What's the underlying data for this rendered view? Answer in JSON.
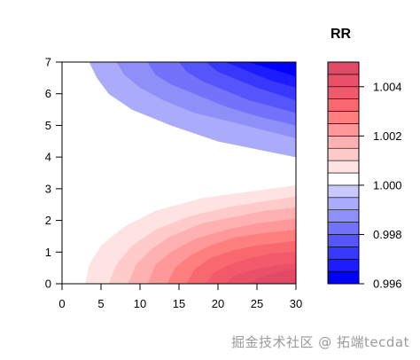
{
  "chart_data": {
    "type": "heatmap",
    "subtype": "filled-contour",
    "title": "",
    "xlabel": "",
    "ylabel": "",
    "xlim": [
      0,
      30
    ],
    "ylim": [
      0,
      7
    ],
    "x_ticks": [
      0,
      5,
      10,
      15,
      20,
      25,
      30
    ],
    "y_ticks": [
      0,
      1,
      2,
      3,
      4,
      5,
      6,
      7
    ],
    "legend": {
      "title": "RR",
      "placement": "right",
      "range": [
        0.996,
        1.005
      ],
      "tick_values": [
        0.996,
        0.998,
        1.0,
        1.002,
        1.004
      ],
      "tick_labels": [
        "0.996",
        "0.998",
        "1.000",
        "1.002",
        "1.004"
      ],
      "levels": [
        0.996,
        0.9965,
        0.997,
        0.9975,
        0.998,
        0.9985,
        0.999,
        0.9995,
        1.0,
        1.0005,
        1.001,
        1.0015,
        1.002,
        1.0025,
        1.003,
        1.0035,
        1.004,
        1.0045,
        1.005
      ],
      "colors": [
        "#0000ff",
        "#1c1cfe",
        "#3838fd",
        "#5555fb",
        "#7272fa",
        "#8f8ffa",
        "#ababfb",
        "#c8c8fc",
        "#ffffff",
        "#ffe3e3",
        "#ffcaca",
        "#ffb1b1",
        "#ff9898",
        "#ff7f7f",
        "#f9686f",
        "#f25a6b",
        "#ea5068",
        "#e04a66"
      ]
    },
    "contours_upper": [
      {
        "level": 0.9995,
        "points": [
          [
            3.5,
            7
          ],
          [
            4.5,
            6.5
          ],
          [
            6,
            6
          ],
          [
            9,
            5.5
          ],
          [
            14,
            5
          ],
          [
            20,
            4.5
          ],
          [
            30,
            4.0
          ]
        ]
      },
      {
        "level": 0.999,
        "points": [
          [
            7,
            7
          ],
          [
            8,
            6.6
          ],
          [
            10,
            6.2
          ],
          [
            13,
            5.8
          ],
          [
            17,
            5.4
          ],
          [
            22,
            5.1
          ],
          [
            30,
            4.6
          ]
        ]
      },
      {
        "level": 0.9985,
        "points": [
          [
            11,
            7
          ],
          [
            12,
            6.6
          ],
          [
            14,
            6.3
          ],
          [
            17,
            6.0
          ],
          [
            21,
            5.6
          ],
          [
            25,
            5.3
          ],
          [
            30,
            5.0
          ]
        ]
      },
      {
        "level": 0.998,
        "points": [
          [
            15,
            7
          ],
          [
            16,
            6.7
          ],
          [
            18,
            6.4
          ],
          [
            21,
            6.1
          ],
          [
            24,
            5.8
          ],
          [
            30,
            5.4
          ]
        ]
      },
      {
        "level": 0.9975,
        "points": [
          [
            18.5,
            7
          ],
          [
            20,
            6.7
          ],
          [
            22,
            6.5
          ],
          [
            25,
            6.2
          ],
          [
            30,
            5.8
          ]
        ]
      },
      {
        "level": 0.997,
        "points": [
          [
            21,
            7
          ],
          [
            23,
            6.8
          ],
          [
            25,
            6.6
          ],
          [
            27,
            6.4
          ],
          [
            30,
            6.2
          ]
        ]
      },
      {
        "level": 0.9965,
        "points": [
          [
            24,
            7
          ],
          [
            26,
            6.85
          ],
          [
            28,
            6.7
          ],
          [
            30,
            6.55
          ]
        ]
      },
      {
        "level": 0.996,
        "points": [
          [
            27,
            7
          ],
          [
            28.5,
            6.9
          ],
          [
            30,
            6.85
          ]
        ]
      }
    ],
    "contours_lower": [
      {
        "level": 1.0005,
        "points": [
          [
            3,
            0
          ],
          [
            3.5,
            0.6
          ],
          [
            5,
            1.2
          ],
          [
            8,
            1.8
          ],
          [
            12,
            2.3
          ],
          [
            18,
            2.7
          ],
          [
            24,
            2.9
          ],
          [
            30,
            3.1
          ]
        ]
      },
      {
        "level": 1.001,
        "points": [
          [
            6,
            0
          ],
          [
            7,
            0.6
          ],
          [
            9,
            1.2
          ],
          [
            12,
            1.7
          ],
          [
            16,
            2.1
          ],
          [
            21,
            2.4
          ],
          [
            26,
            2.6
          ],
          [
            30,
            2.75
          ]
        ]
      },
      {
        "level": 1.0015,
        "points": [
          [
            8.5,
            0
          ],
          [
            9.5,
            0.6
          ],
          [
            11.5,
            1.1
          ],
          [
            14,
            1.5
          ],
          [
            18,
            1.9
          ],
          [
            22,
            2.1
          ],
          [
            26,
            2.3
          ],
          [
            30,
            2.4
          ]
        ]
      },
      {
        "level": 1.002,
        "points": [
          [
            11,
            0
          ],
          [
            12,
            0.6
          ],
          [
            14,
            1.0
          ],
          [
            17,
            1.4
          ],
          [
            21,
            1.7
          ],
          [
            25,
            1.9
          ],
          [
            30,
            2.05
          ]
        ]
      },
      {
        "level": 1.0025,
        "points": [
          [
            13.5,
            0
          ],
          [
            14.5,
            0.5
          ],
          [
            16.5,
            0.9
          ],
          [
            19,
            1.2
          ],
          [
            22,
            1.45
          ],
          [
            26,
            1.6
          ],
          [
            30,
            1.7
          ]
        ]
      },
      {
        "level": 1.003,
        "points": [
          [
            16,
            0
          ],
          [
            17,
            0.45
          ],
          [
            19,
            0.8
          ],
          [
            22,
            1.05
          ],
          [
            25,
            1.2
          ],
          [
            30,
            1.35
          ]
        ]
      },
      {
        "level": 1.0035,
        "points": [
          [
            18.5,
            0
          ],
          [
            19.5,
            0.35
          ],
          [
            21.5,
            0.6
          ],
          [
            24,
            0.8
          ],
          [
            27,
            0.95
          ],
          [
            30,
            1.0
          ]
        ]
      },
      {
        "level": 1.004,
        "points": [
          [
            21,
            0
          ],
          [
            22,
            0.25
          ],
          [
            24,
            0.4
          ],
          [
            26,
            0.5
          ],
          [
            28,
            0.6
          ],
          [
            30,
            0.65
          ]
        ]
      },
      {
        "level": 1.0045,
        "points": [
          [
            24,
            0
          ],
          [
            25,
            0.15
          ],
          [
            27,
            0.3
          ],
          [
            28.5,
            0.4
          ],
          [
            30,
            0.45
          ]
        ]
      }
    ]
  },
  "watermark": "掘金技术社区 @ 拓端tecdat"
}
